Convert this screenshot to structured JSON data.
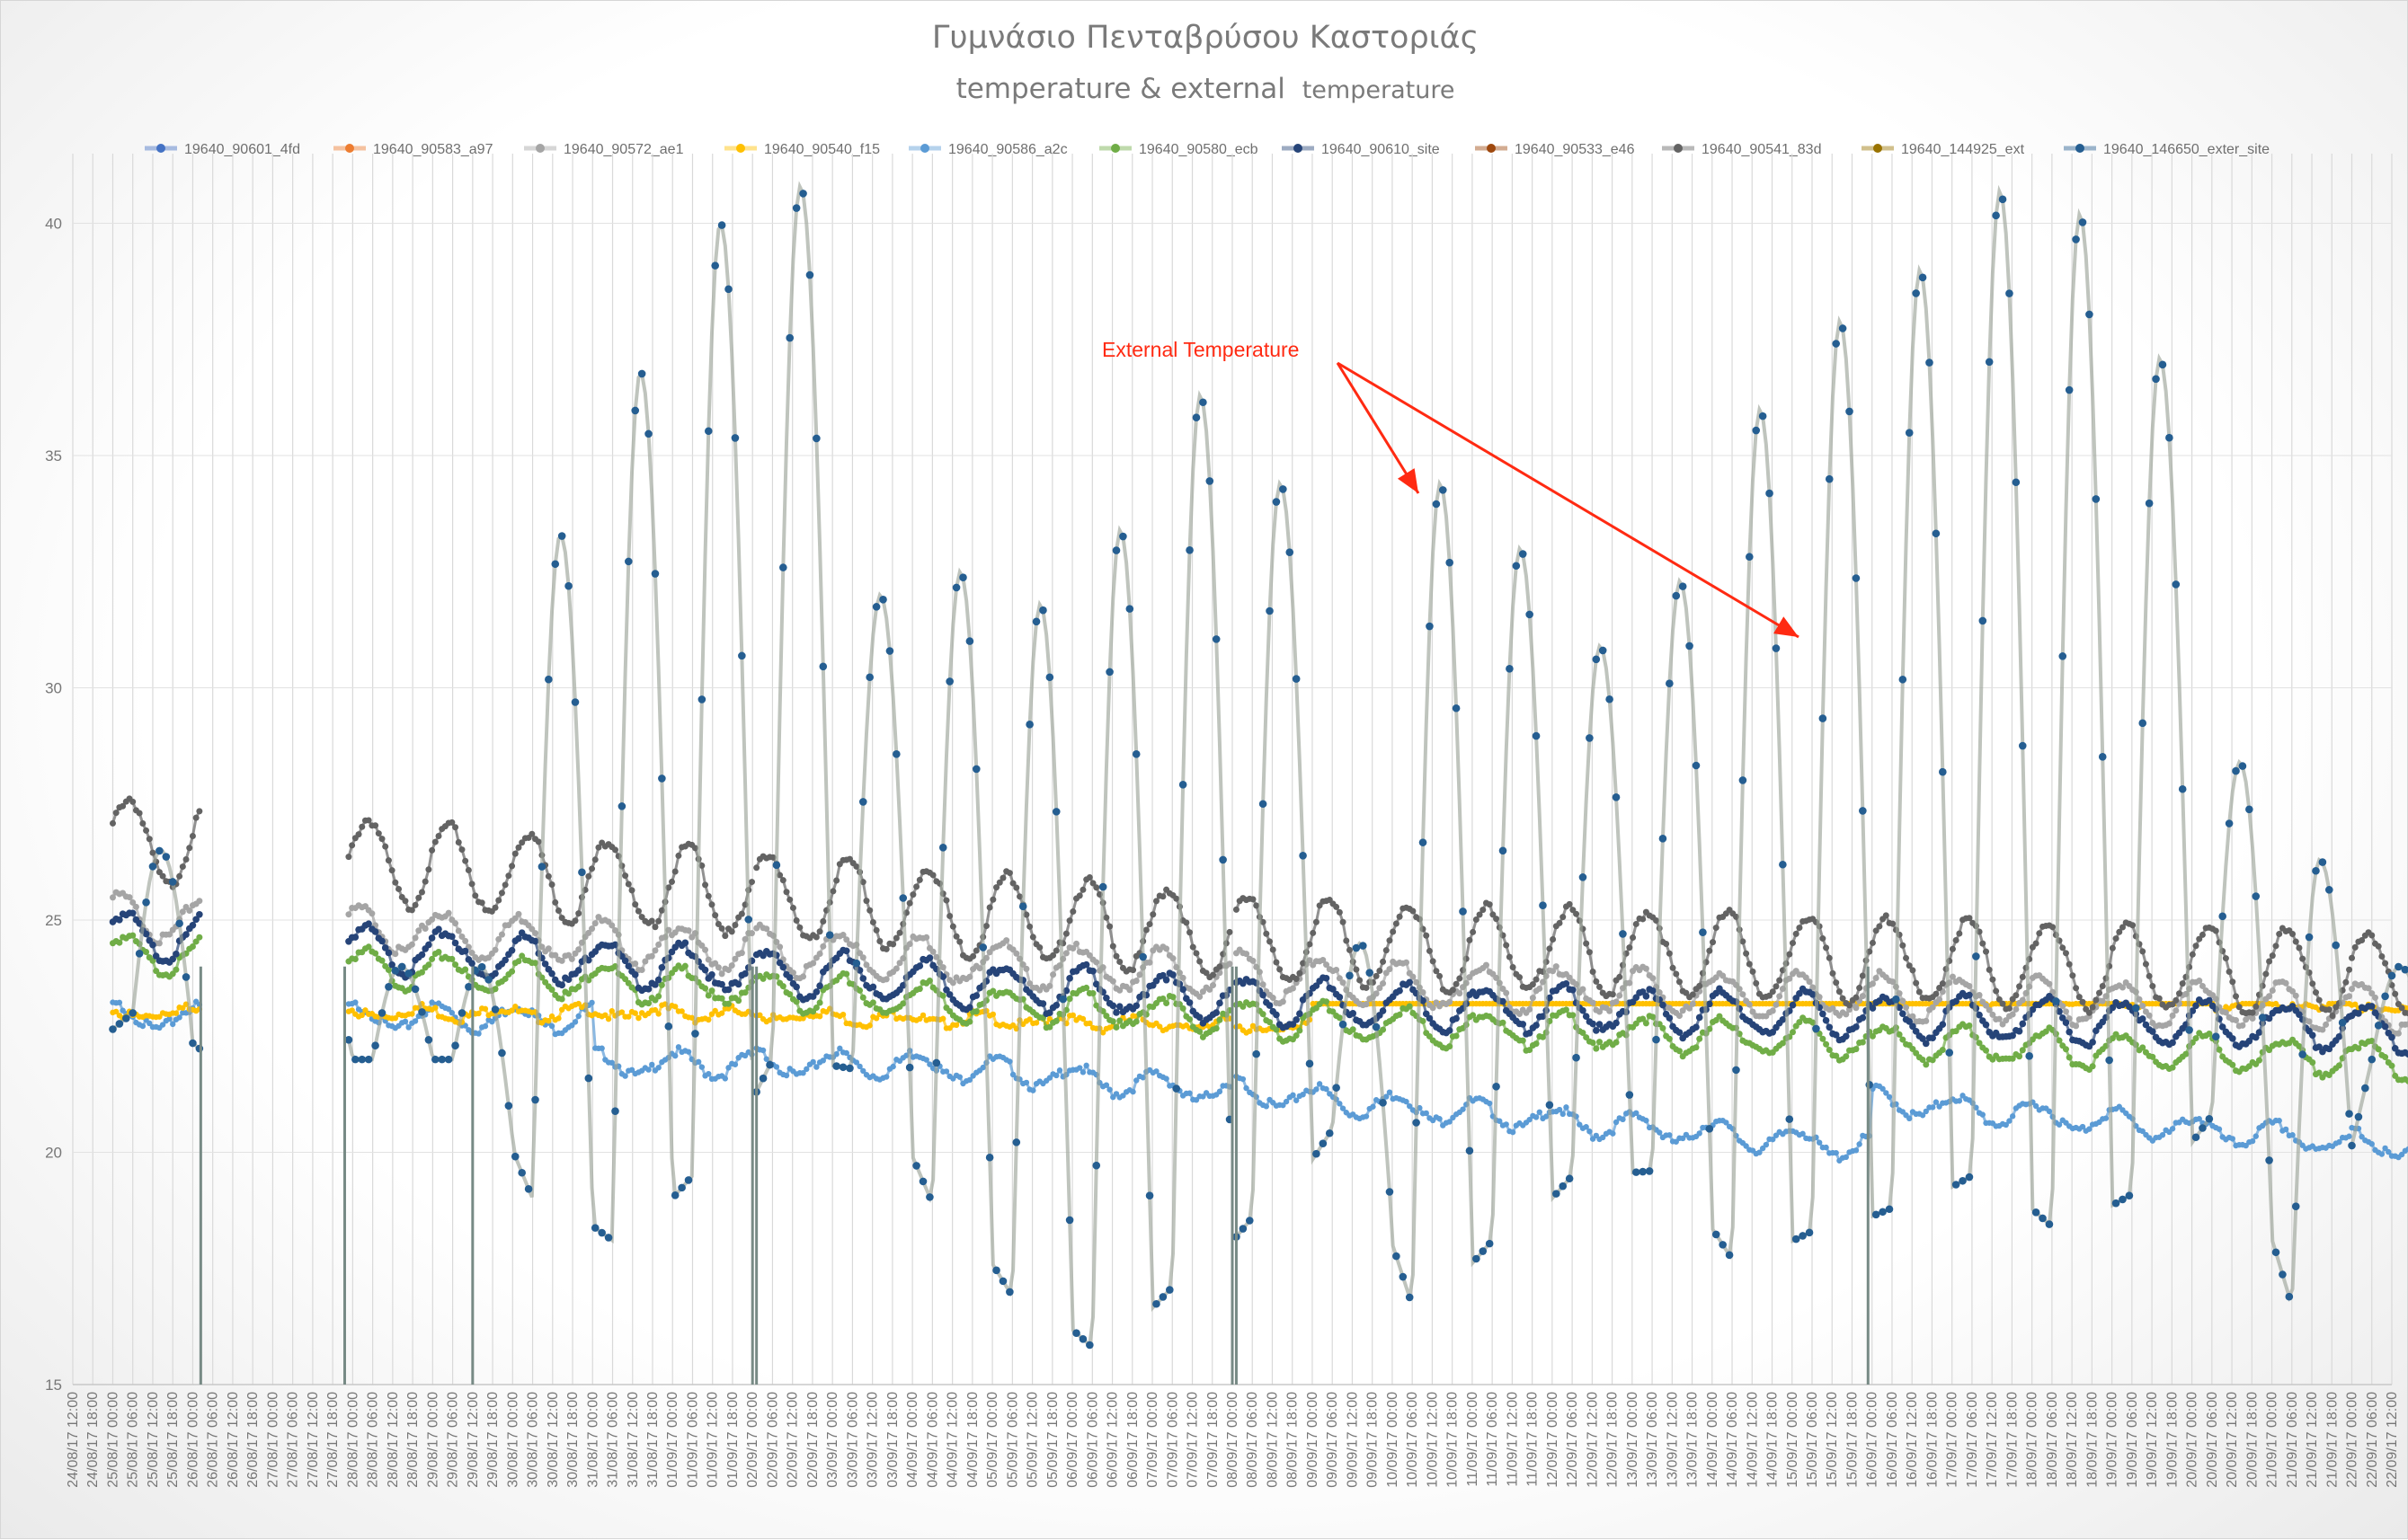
{
  "chart_data": {
    "type": "line",
    "title": "Γυμνάσιο Πενταβρύσου Καστοριάς",
    "subtitle_main": "temperature & external",
    "subtitle_small": "temperature",
    "ylim": [
      15,
      41.5
    ],
    "y_ticks": [
      15,
      20,
      25,
      30,
      35,
      40
    ],
    "x_start": "24/08/17 12:00",
    "x_end": "22/09/17 12:00",
    "x_step_hours": 6,
    "legend_position": "top",
    "annotation": {
      "text": "External Temperature"
    },
    "series": [
      {
        "name": "19640_90601_4fd",
        "color": "#4472c4",
        "marker": "line"
      },
      {
        "name": "19640_90583_a97",
        "color": "#ed7d31",
        "marker": "line"
      },
      {
        "name": "19640_90572_ae1",
        "color": "#a5a5a5",
        "marker": "line"
      },
      {
        "name": "19640_90540_f15",
        "color": "#ffc000",
        "marker": "dot"
      },
      {
        "name": "19640_90586_a2c",
        "color": "#5b9bd5",
        "marker": "line"
      },
      {
        "name": "19640_90580_ecb",
        "color": "#70ad47",
        "marker": "line"
      },
      {
        "name": "19640_90610_site",
        "color": "#264478",
        "marker": "line"
      },
      {
        "name": "19640_90533_e46",
        "color": "#9e480e",
        "marker": "line"
      },
      {
        "name": "19640_90541_83d",
        "color": "#636363",
        "marker": "line"
      },
      {
        "name": "19640_144925_ext",
        "color": "#997300",
        "marker": "line"
      },
      {
        "name": "19640_146650_exter_site",
        "color": "#255e91",
        "marker": "line"
      }
    ],
    "profiles": {
      "gaps": [
        [
          26.1,
          27.9
        ],
        [
          28.6,
          28.65
        ],
        [
          29.5,
          29.58
        ],
        [
          8.9,
          9.0
        ]
      ],
      "external_peaks": [
        {
          "day": "25/08",
          "min": 23.0,
          "max": 26.5
        },
        {
          "day": "30/08",
          "min": 19.0,
          "max": 33.3
        },
        {
          "day": "31/08",
          "min": 18.1,
          "max": 36.8
        },
        {
          "day": "01/09",
          "min": 19.5,
          "max": 40.0
        },
        {
          "day": "02/09",
          "min": 22.0,
          "max": 40.8
        },
        {
          "day": "03/09",
          "min": 21.8,
          "max": 32.0
        },
        {
          "day": "04/09",
          "min": 18.9,
          "max": 32.5
        },
        {
          "day": "05/09",
          "min": 16.9,
          "max": 31.8
        },
        {
          "day": "06/09",
          "min": 15.8,
          "max": 33.4
        },
        {
          "day": "07/09",
          "min": 17.1,
          "max": 36.3
        },
        {
          "day": "08/09",
          "min": 18.6,
          "max": 34.4
        },
        {
          "day": "09/09",
          "min": 20.5,
          "max": 24.5
        },
        {
          "day": "10/09",
          "min": 16.7,
          "max": 34.4
        },
        {
          "day": "11/09",
          "min": 18.1,
          "max": 33.0
        },
        {
          "day": "12/09",
          "min": 19.5,
          "max": 30.9
        },
        {
          "day": "13/09",
          "min": 19.6,
          "max": 32.3
        },
        {
          "day": "14/09",
          "min": 17.7,
          "max": 36.0
        },
        {
          "day": "15/09",
          "min": 18.3,
          "max": 37.9
        },
        {
          "day": "16/09",
          "min": 18.8,
          "max": 39.0
        },
        {
          "day": "17/09",
          "min": 19.5,
          "max": 40.7
        },
        {
          "day": "18/09",
          "min": 18.4,
          "max": 40.2
        },
        {
          "day": "19/09",
          "min": 19.1,
          "max": 37.1
        },
        {
          "day": "20/09",
          "min": 20.8,
          "max": 28.4
        },
        {
          "day": "21/09",
          "min": 16.7,
          "max": 26.3
        }
      ]
    }
  }
}
